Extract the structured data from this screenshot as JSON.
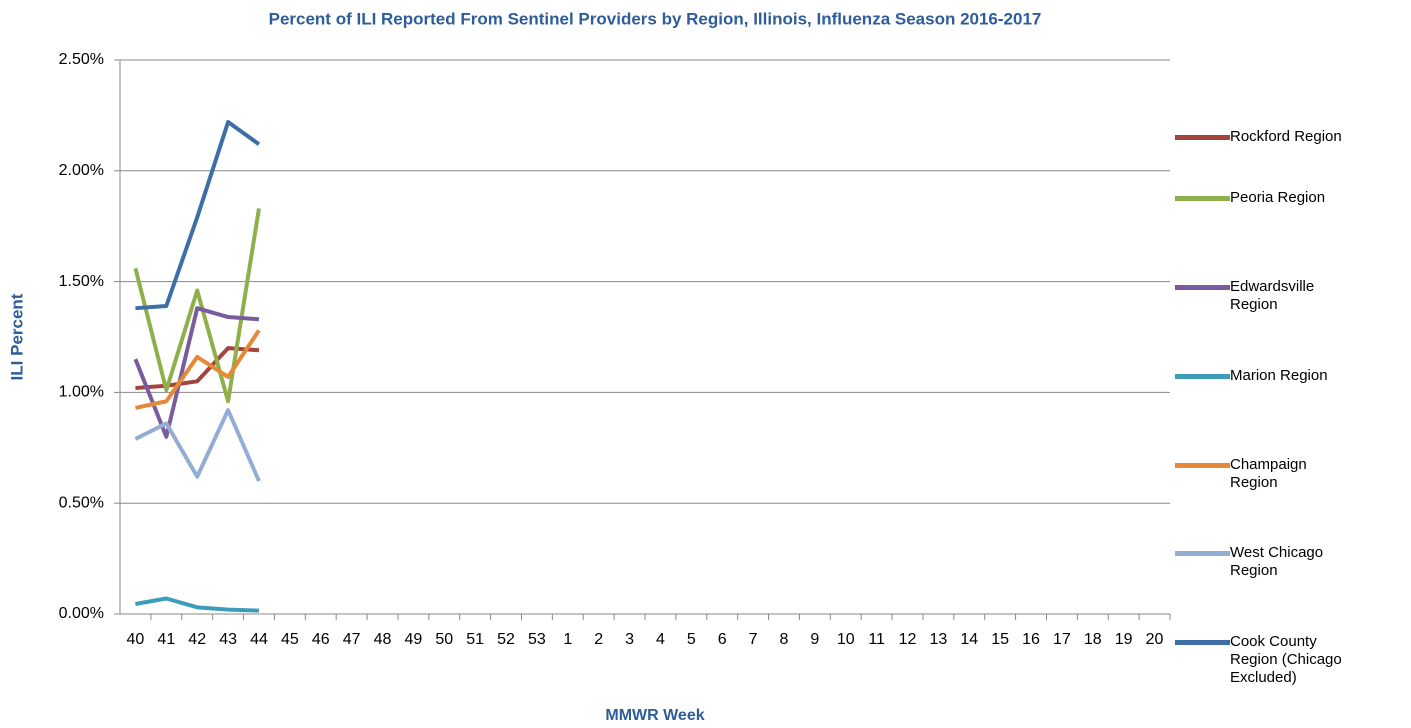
{
  "chart_data": {
    "type": "line",
    "title": "Percent of ILI Reported From Sentinel Providers by Region, Illinois, Influenza Season 2016-2017",
    "x_label": "MMWR Week",
    "y_label": "ILI Percent",
    "categories": [
      "40",
      "41",
      "42",
      "43",
      "44",
      "45",
      "46",
      "47",
      "48",
      "49",
      "50",
      "51",
      "52",
      "53",
      "1",
      "2",
      "3",
      "4",
      "5",
      "6",
      "7",
      "8",
      "9",
      "10",
      "11",
      "12",
      "13",
      "14",
      "15",
      "16",
      "17",
      "18",
      "19",
      "20"
    ],
    "ylim": [
      0,
      2.5
    ],
    "yticks": [
      {
        "value": 0,
        "label": "0.00%"
      },
      {
        "value": 0.5,
        "label": "0.50%"
      },
      {
        "value": 1,
        "label": "1.00%"
      },
      {
        "value": 1.5,
        "label": "1.50%"
      },
      {
        "value": 2,
        "label": "2.00%"
      },
      {
        "value": 2.5,
        "label": "2.50%"
      }
    ],
    "grid": true,
    "legend": "right",
    "series": [
      {
        "name": "Rockford Region",
        "color": "#a5433f",
        "values": [
          1.02,
          1.03,
          1.05,
          1.2,
          1.19,
          null,
          null,
          null,
          null,
          null,
          null,
          null,
          null,
          null,
          null,
          null,
          null,
          null,
          null,
          null,
          null,
          null,
          null,
          null,
          null,
          null,
          null,
          null,
          null,
          null,
          null,
          null,
          null,
          null
        ]
      },
      {
        "name": "Peoria Region",
        "color": "#8db04a",
        "values": [
          1.56,
          1.01,
          1.46,
          0.96,
          1.83,
          null,
          null,
          null,
          null,
          null,
          null,
          null,
          null,
          null,
          null,
          null,
          null,
          null,
          null,
          null,
          null,
          null,
          null,
          null,
          null,
          null,
          null,
          null,
          null,
          null,
          null,
          null,
          null,
          null
        ]
      },
      {
        "name": "Edwardsville Region",
        "color": "#7a5c9e",
        "values": [
          1.15,
          0.8,
          1.38,
          1.34,
          1.33,
          null,
          null,
          null,
          null,
          null,
          null,
          null,
          null,
          null,
          null,
          null,
          null,
          null,
          null,
          null,
          null,
          null,
          null,
          null,
          null,
          null,
          null,
          null,
          null,
          null,
          null,
          null,
          null,
          null
        ]
      },
      {
        "name": "Marion Region",
        "color": "#3d9cb8",
        "values": [
          0.045,
          0.07,
          0.03,
          0.02,
          0.015,
          null,
          null,
          null,
          null,
          null,
          null,
          null,
          null,
          null,
          null,
          null,
          null,
          null,
          null,
          null,
          null,
          null,
          null,
          null,
          null,
          null,
          null,
          null,
          null,
          null,
          null,
          null,
          null,
          null
        ]
      },
      {
        "name": "Champaign Region",
        "color": "#e58936",
        "values": [
          0.93,
          0.96,
          1.16,
          1.07,
          1.28,
          null,
          null,
          null,
          null,
          null,
          null,
          null,
          null,
          null,
          null,
          null,
          null,
          null,
          null,
          null,
          null,
          null,
          null,
          null,
          null,
          null,
          null,
          null,
          null,
          null,
          null,
          null,
          null,
          null
        ]
      },
      {
        "name": "West Chicago Region",
        "color": "#93aed4",
        "values": [
          0.79,
          0.86,
          0.62,
          0.92,
          0.6,
          null,
          null,
          null,
          null,
          null,
          null,
          null,
          null,
          null,
          null,
          null,
          null,
          null,
          null,
          null,
          null,
          null,
          null,
          null,
          null,
          null,
          null,
          null,
          null,
          null,
          null,
          null,
          null,
          null
        ]
      },
      {
        "name": "Cook County Region (Chicago Excluded)",
        "color": "#3d6ea8",
        "values": [
          1.38,
          1.39,
          1.79,
          2.22,
          2.12,
          null,
          null,
          null,
          null,
          null,
          null,
          null,
          null,
          null,
          null,
          null,
          null,
          null,
          null,
          null,
          null,
          null,
          null,
          null,
          null,
          null,
          null,
          null,
          null,
          null,
          null,
          null,
          null,
          null
        ]
      }
    ]
  }
}
